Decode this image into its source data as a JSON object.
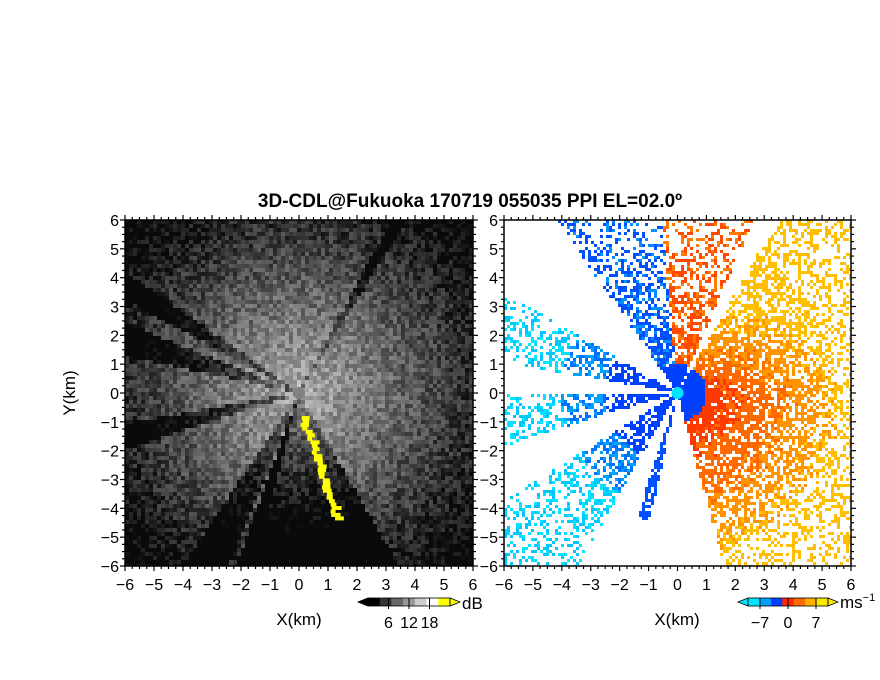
{
  "title": "3D-CDL@Fukuoka 170719 055035 PPI EL=02.0º",
  "chart_data": [
    {
      "type": "heatmap",
      "panel": "left",
      "field": "intensity",
      "xlabel": "X(km)",
      "ylabel": "Y(km)",
      "xlim": [
        -6,
        6
      ],
      "ylim": [
        -6,
        6
      ],
      "ticks": [
        -6,
        -5,
        -4,
        -3,
        -2,
        -1,
        0,
        1,
        2,
        3,
        4,
        5,
        6
      ],
      "colorbar": {
        "unit": "dB",
        "ticks": [
          6,
          12,
          18
        ],
        "range": [
          0,
          24
        ],
        "colors": [
          "#000000",
          "#333333",
          "#666666",
          "#999999",
          "#cccccc",
          "#ffffff",
          "#ffff00"
        ]
      }
    },
    {
      "type": "heatmap",
      "panel": "right",
      "field": "doppler velocity",
      "xlabel": "X(km)",
      "ylabel": "",
      "xlim": [
        -6,
        6
      ],
      "ylim": [
        -6,
        6
      ],
      "ticks": [
        -6,
        -5,
        -4,
        -3,
        -2,
        -1,
        0,
        1,
        2,
        3,
        4,
        5,
        6
      ],
      "colorbar": {
        "unit": "ms",
        "unit_superscript": "−1",
        "ticks": [
          -7,
          0,
          7
        ],
        "range": [
          -10,
          10
        ],
        "colors": [
          "#00e5ff",
          "#00a0ff",
          "#0040ff",
          "#ff2a00",
          "#ff6a00",
          "#ffb000",
          "#ffe800"
        ]
      }
    }
  ],
  "colors": {
    "background": "#ffffff",
    "frame": "#000000",
    "marker_left": "#808080",
    "marker_right": "#00e5ff"
  }
}
